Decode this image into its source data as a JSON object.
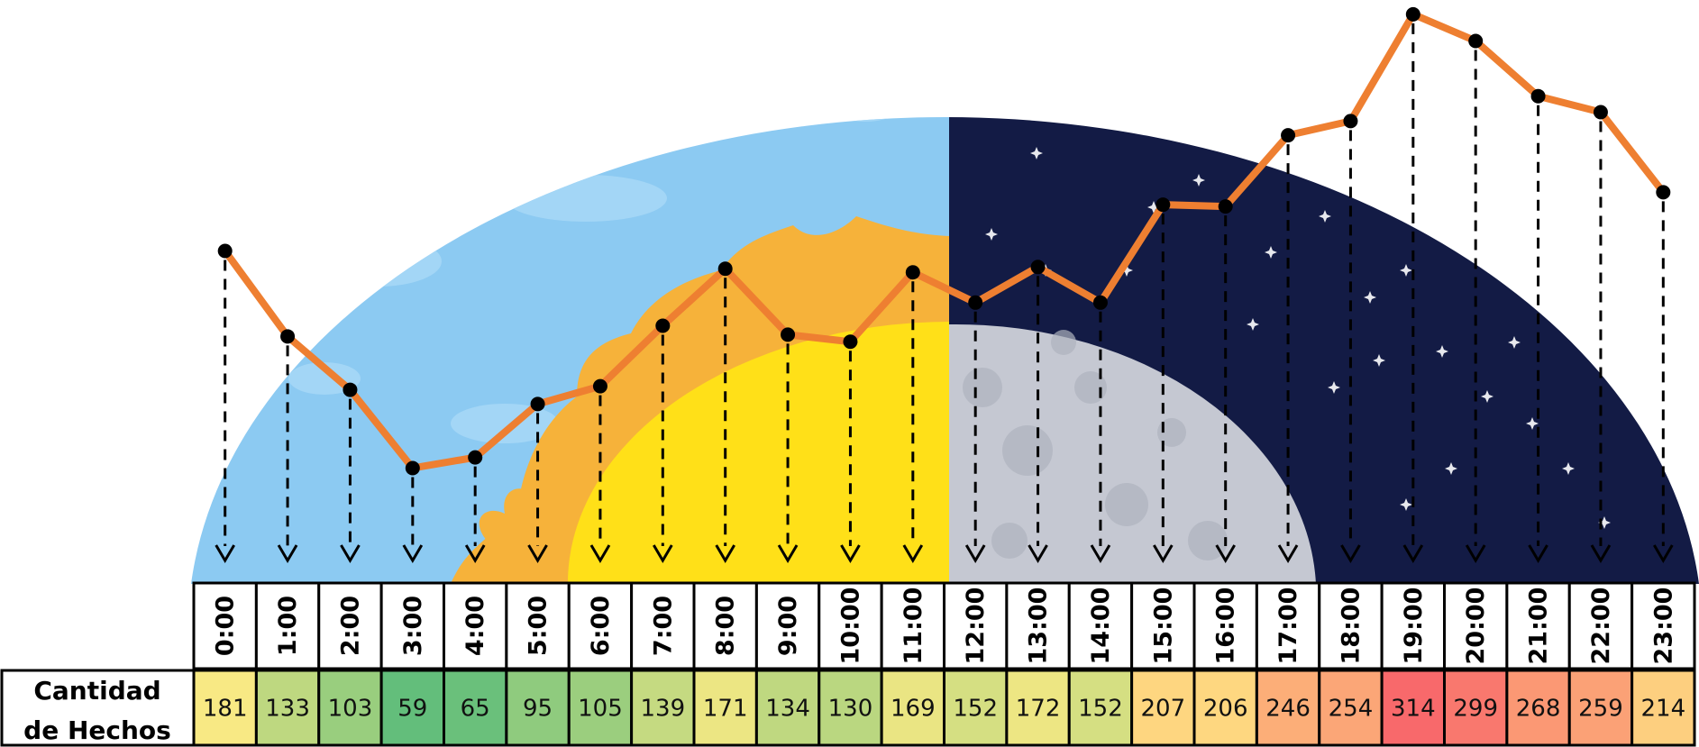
{
  "chart_data": {
    "type": "line",
    "categories": [
      "0:00",
      "1:00",
      "2:00",
      "3:00",
      "4:00",
      "5:00",
      "6:00",
      "7:00",
      "8:00",
      "9:00",
      "10:00",
      "11:00",
      "12:00",
      "13:00",
      "14:00",
      "15:00",
      "16:00",
      "17:00",
      "18:00",
      "19:00",
      "20:00",
      "21:00",
      "22:00",
      "23:00"
    ],
    "series": [
      {
        "name": "Cantidad de Hechos",
        "values": [
          181,
          133,
          103,
          59,
          65,
          95,
          105,
          139,
          171,
          134,
          130,
          169,
          152,
          172,
          152,
          207,
          206,
          246,
          254,
          314,
          299,
          268,
          259,
          214
        ]
      }
    ],
    "row_label_line1": "Cantidad",
    "row_label_line2": "de Hechos",
    "title": "",
    "xlabel": "",
    "ylabel": "",
    "grid": false,
    "legend": "none",
    "colors": {
      "line": "#EE7F31",
      "marker": "#000000",
      "sky_day": "#8CCAF2",
      "sky_night": "#131B45",
      "sun": "#FFE018",
      "flames": "#F6B23A",
      "moon": "#C5C8D2",
      "stars": "#FFFFFF",
      "heat_low": "#63BE7B",
      "heat_mid": "#FFEB84",
      "heat_high": "#F8696B"
    }
  }
}
